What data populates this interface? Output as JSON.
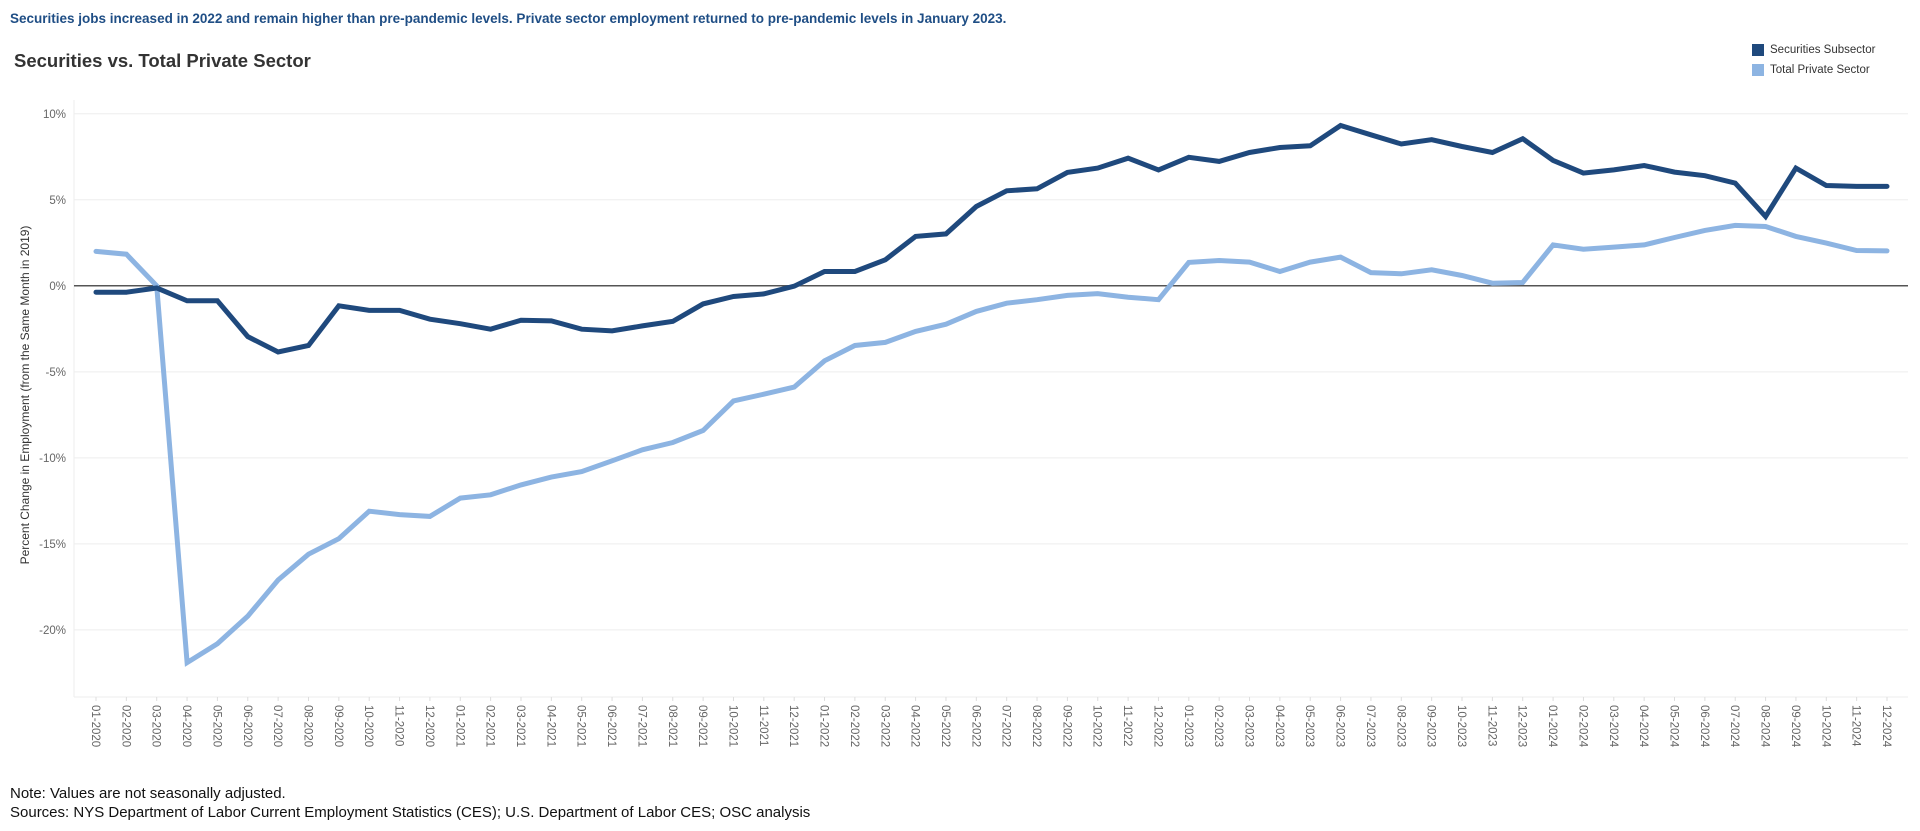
{
  "header": {
    "subtitle": "Securities jobs increased in 2022 and remain higher than pre-pandemic levels. Private sector employment returned to pre-pandemic levels in January 2023."
  },
  "footer": {
    "note": "Note: Values are not seasonally adjusted.",
    "sources": "Sources: NYS Department of Labor Current Employment Statistics (CES); U.S. Department of Labor CES; OSC analysis"
  },
  "chart_data": {
    "type": "line",
    "title": "Securities vs. Total Private Sector",
    "xlabel": "",
    "ylabel": "Percent Change in Employment (from the Same Month in 2019)",
    "ylim": [
      -23.9,
      10.8
    ],
    "yticks": [
      10,
      5,
      0,
      -5,
      -10,
      -15,
      -20
    ],
    "ytick_labels": [
      "10%",
      "5%",
      "0%",
      "-5%",
      "-10%",
      "-15%",
      "-20%"
    ],
    "grid": true,
    "legend_position": "top-right",
    "x": [
      "01-2020",
      "02-2020",
      "03-2020",
      "04-2020",
      "05-2020",
      "06-2020",
      "07-2020",
      "08-2020",
      "09-2020",
      "10-2020",
      "11-2020",
      "12-2020",
      "01-2021",
      "02-2021",
      "03-2021",
      "04-2021",
      "05-2021",
      "06-2021",
      "07-2021",
      "08-2021",
      "09-2021",
      "10-2021",
      "11-2021",
      "12-2021",
      "01-2022",
      "02-2022",
      "03-2022",
      "04-2022",
      "05-2022",
      "06-2022",
      "07-2022",
      "08-2022",
      "09-2022",
      "10-2022",
      "11-2022",
      "12-2022",
      "01-2023",
      "02-2023",
      "03-2023",
      "04-2023",
      "05-2023",
      "06-2023",
      "07-2023",
      "08-2023",
      "09-2023",
      "10-2023",
      "11-2023",
      "12-2023",
      "01-2024",
      "02-2024",
      "03-2024",
      "04-2024",
      "05-2024",
      "06-2024",
      "07-2024",
      "08-2024",
      "09-2024",
      "10-2024",
      "11-2024",
      "12-2024"
    ],
    "series": [
      {
        "name": "Securities Subsector",
        "color": "#1f497d",
        "values": [
          -0.37,
          -0.37,
          -0.13,
          -0.87,
          -0.87,
          -2.95,
          -3.85,
          -3.47,
          -1.16,
          -1.43,
          -1.43,
          -1.94,
          -2.2,
          -2.52,
          -2.0,
          -2.04,
          -2.52,
          -2.62,
          -2.33,
          -2.07,
          -1.05,
          -0.62,
          -0.47,
          -0.02,
          0.83,
          0.83,
          1.51,
          2.87,
          3.02,
          4.61,
          5.52,
          5.64,
          6.59,
          6.84,
          7.42,
          6.74,
          7.47,
          7.23,
          7.75,
          8.04,
          8.14,
          9.32,
          8.78,
          8.24,
          8.49,
          8.1,
          7.75,
          8.55,
          7.29,
          6.55,
          6.74,
          6.99,
          6.61,
          6.4,
          5.97,
          4.03,
          6.84,
          5.83,
          5.78,
          5.78
        ]
      },
      {
        "name": "Total Private Sector",
        "color": "#8db4e2",
        "values": [
          2.0,
          1.84,
          0.0,
          -21.9,
          -20.8,
          -19.2,
          -17.1,
          -15.6,
          -14.7,
          -13.1,
          -13.3,
          -13.4,
          -12.34,
          -12.15,
          -11.57,
          -11.12,
          -10.8,
          -10.17,
          -9.53,
          -9.11,
          -8.41,
          -6.69,
          -6.3,
          -5.89,
          -4.36,
          -3.47,
          -3.29,
          -2.65,
          -2.23,
          -1.49,
          -1.01,
          -0.81,
          -0.56,
          -0.45,
          -0.66,
          -0.81,
          1.36,
          1.47,
          1.38,
          0.83,
          1.38,
          1.67,
          0.77,
          0.7,
          0.93,
          0.6,
          0.15,
          0.19,
          2.38,
          2.13,
          2.25,
          2.38,
          2.81,
          3.22,
          3.51,
          3.45,
          2.87,
          2.48,
          2.05,
          2.03
        ]
      }
    ]
  }
}
